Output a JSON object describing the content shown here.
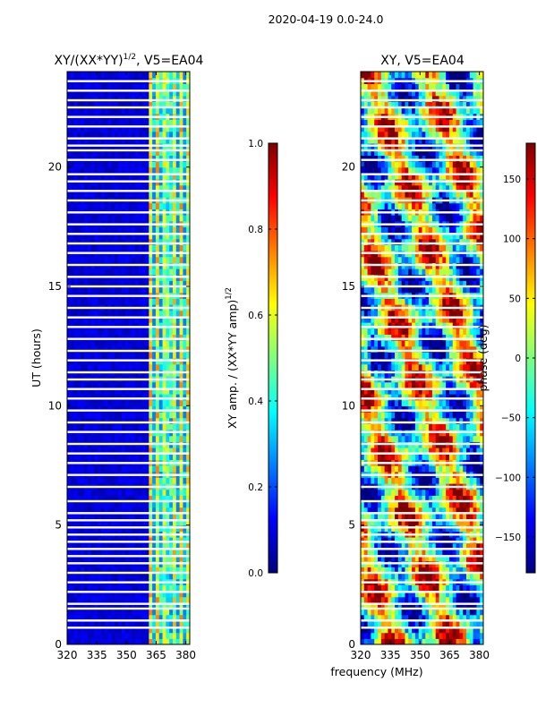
{
  "suptitle": "2020-04-19 0.0-24.0",
  "colors": {
    "jet_stops": [
      "#00007f",
      "#0000ff",
      "#007fff",
      "#00ffff",
      "#7fff7f",
      "#ffff00",
      "#ff7f00",
      "#ff0000",
      "#7f0000"
    ]
  },
  "chart_data": [
    {
      "type": "heatmap",
      "title": "XY/(XX*YY)",
      "title_sup": "1/2",
      "title_suffix": ", V5=EA04",
      "xlabel": "",
      "ylabel": "UT (hours)",
      "xlim": [
        320,
        382
      ],
      "ylim": [
        0,
        24
      ],
      "xticks": [
        320,
        335,
        350,
        365,
        380
      ],
      "yticks": [
        0,
        5,
        10,
        15,
        20
      ],
      "colorbar": {
        "label": "XY amp. / (XX*YY amp)",
        "label_sup": "1/2",
        "range": [
          0.0,
          1.0
        ],
        "ticks": [
          "0.0",
          "0.2",
          "0.4",
          "0.6",
          "0.8",
          "1.0"
        ],
        "tick_values": [
          0.0,
          0.2,
          0.4,
          0.6,
          0.8,
          1.0
        ]
      },
      "bands": [
        {
          "from": 320,
          "to": 361,
          "level": 0.05
        },
        {
          "from": 361,
          "to": 382,
          "level": 0.45
        }
      ],
      "gaps_hours": [
        0.7,
        1.0,
        1.5,
        1.7,
        2.2,
        2.6,
        3.0,
        3.4,
        3.7,
        4.0,
        4.3,
        4.6,
        4.9,
        5.2,
        5.5,
        6.0,
        6.6,
        7.1,
        7.6,
        8.0,
        8.4,
        8.9,
        9.3,
        9.8,
        10.3,
        10.7,
        11.1,
        11.4,
        11.9,
        12.3,
        12.8,
        13.3,
        13.7,
        14.1,
        14.6,
        15.0,
        15.4,
        15.9,
        16.4,
        16.8,
        17.2,
        17.6,
        18.1,
        18.6,
        19.0,
        19.4,
        19.7,
        20.3,
        20.7,
        20.9,
        21.2,
        21.7,
        22.1,
        22.5,
        22.8,
        23.2,
        23.6
      ]
    },
    {
      "type": "heatmap",
      "title": "XY, V5=EA04",
      "xlabel": "frequency (MHz)",
      "ylabel": "",
      "xlim": [
        320,
        382
      ],
      "ylim": [
        0,
        24
      ],
      "xticks": [
        320,
        335,
        350,
        365,
        380
      ],
      "yticks": [
        0,
        5,
        10,
        15,
        20
      ],
      "colorbar": {
        "label": "phase (deg)",
        "range": [
          -180,
          180
        ],
        "ticks": [
          "−150",
          "−100",
          "−50",
          "0",
          "50",
          "100",
          "150"
        ],
        "tick_values": [
          -150,
          -100,
          -50,
          0,
          50,
          100,
          150
        ]
      },
      "gaps_hours": [
        0.7,
        1.0,
        1.5,
        1.7,
        2.2,
        2.6,
        3.0,
        3.4,
        3.7,
        4.0,
        4.3,
        4.6,
        4.9,
        5.2,
        5.5,
        6.0,
        6.6,
        7.1,
        7.6,
        8.0,
        8.4,
        8.9,
        9.3,
        9.8,
        10.3,
        10.7,
        11.1,
        11.4,
        11.9,
        12.3,
        12.8,
        13.3,
        13.7,
        14.1,
        14.6,
        15.0,
        15.4,
        15.9,
        16.4,
        16.8,
        17.2,
        17.6,
        18.1,
        18.6,
        19.0,
        19.4,
        19.7,
        20.3,
        20.7,
        20.9,
        21.2,
        21.7,
        22.1,
        22.5,
        22.8,
        23.2,
        23.6
      ]
    }
  ]
}
